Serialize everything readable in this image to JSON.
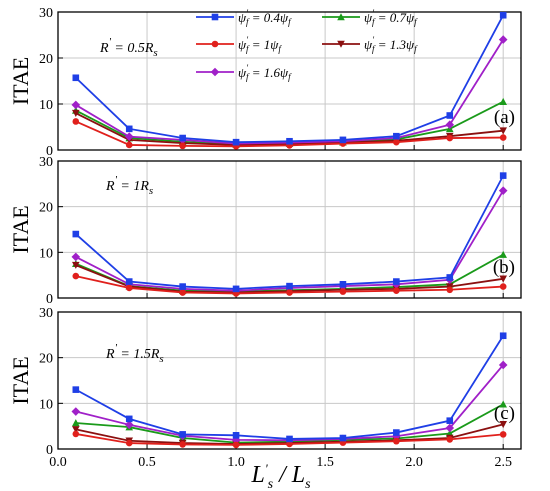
{
  "chart_data": {
    "type": "line",
    "x": [
      0.1,
      0.4,
      0.7,
      1.0,
      1.3,
      1.6,
      1.9,
      2.2,
      2.5
    ],
    "xlim": [
      0,
      2.6
    ],
    "xticks": [
      "0.0",
      "0.5",
      "1.0",
      "1.5",
      "2.0",
      "2.5"
    ],
    "xlabel": "L's/Ls",
    "grid": true,
    "legend_position": "top-center (panel a)",
    "legend": [
      {
        "label": "ψ'f = 0.4ψf",
        "color": "#1f3fe6",
        "marker": "square"
      },
      {
        "label": "ψ'f = 1ψf",
        "color": "#e0201c",
        "marker": "circle"
      },
      {
        "label": "ψ'f = 1.6ψf",
        "color": "#a020c8",
        "marker": "diamond"
      },
      {
        "label": "ψ'f = 0.7ψf",
        "color": "#1a9a1a",
        "marker": "triangle-up"
      },
      {
        "label": "ψ'f = 1.3ψf",
        "color": "#8b1010",
        "marker": "triangle-down"
      }
    ],
    "panels": [
      {
        "id": "a",
        "panel_label": "(a)",
        "rs_label": "R's = 0.5Rs",
        "ylabel": "ITAE",
        "ylim": [
          0,
          30
        ],
        "yticks": [
          "0",
          "10",
          "20",
          "30"
        ],
        "series": [
          {
            "name": "ψ'f = 0.4ψf",
            "color": "#1f3fe6",
            "marker": "square",
            "values": [
              15.7,
              4.6,
              2.6,
              1.7,
              1.9,
              2.2,
              3.0,
              7.5,
              29.3
            ]
          },
          {
            "name": "ψ'f = 1ψf",
            "color": "#e0201c",
            "marker": "circle",
            "values": [
              6.2,
              1.1,
              0.9,
              0.8,
              1.0,
              1.4,
              1.7,
              2.6,
              2.7
            ]
          },
          {
            "name": "ψ'f = 1.6ψf",
            "color": "#a020c8",
            "marker": "diamond",
            "values": [
              9.8,
              2.9,
              2.2,
              1.4,
              1.6,
              1.9,
              2.6,
              5.5,
              24.0
            ]
          },
          {
            "name": "ψ'f = 0.7ψf",
            "color": "#1a9a1a",
            "marker": "triangle-up",
            "values": [
              8.6,
              2.6,
              1.8,
              1.2,
              1.4,
              1.7,
              2.3,
              4.6,
              10.5
            ]
          },
          {
            "name": "ψ'f = 1.3ψf",
            "color": "#8b1010",
            "marker": "triangle-down",
            "values": [
              8.0,
              2.2,
              1.5,
              1.1,
              1.3,
              1.6,
              2.0,
              3.0,
              4.2
            ]
          }
        ]
      },
      {
        "id": "b",
        "panel_label": "(b)",
        "rs_label": "R's = 1Rs",
        "ylabel": "ITAE",
        "ylim": [
          0,
          30
        ],
        "yticks": [
          "0",
          "10",
          "20",
          "30"
        ],
        "series": [
          {
            "name": "ψ'f = 0.4ψf",
            "color": "#1f3fe6",
            "marker": "square",
            "values": [
              14.0,
              3.6,
              2.5,
              2.0,
              2.6,
              3.0,
              3.6,
              4.5,
              26.8
            ]
          },
          {
            "name": "ψ'f = 1ψf",
            "color": "#e0201c",
            "marker": "circle",
            "values": [
              4.8,
              2.2,
              1.2,
              1.0,
              1.2,
              1.4,
              1.6,
              1.8,
              2.5
            ]
          },
          {
            "name": "ψ'f = 1.6ψf",
            "color": "#a020c8",
            "marker": "diamond",
            "values": [
              9.0,
              3.0,
              2.0,
              1.6,
              2.2,
              2.6,
              3.0,
              4.0,
              23.5
            ]
          },
          {
            "name": "ψ'f = 0.7ψf",
            "color": "#1a9a1a",
            "marker": "triangle-up",
            "values": [
              7.5,
              2.6,
              1.6,
              1.4,
              1.7,
              2.0,
              2.4,
              3.0,
              9.5
            ]
          },
          {
            "name": "ψ'f = 1.3ψf",
            "color": "#8b1010",
            "marker": "triangle-down",
            "values": [
              7.2,
              2.5,
              1.4,
              1.2,
              1.5,
              1.8,
              2.0,
              2.5,
              4.2
            ]
          }
        ]
      },
      {
        "id": "c",
        "panel_label": "(c)",
        "rs_label": "R's = 1.5Rs",
        "ylabel": "ITAE",
        "ylim": [
          0,
          30
        ],
        "yticks": [
          "0",
          "10",
          "20",
          "30"
        ],
        "series": [
          {
            "name": "ψ'f = 0.4ψf",
            "color": "#1f3fe6",
            "marker": "square",
            "values": [
              13.0,
              6.6,
              3.2,
              3.0,
              2.2,
              2.4,
              3.6,
              6.2,
              24.8
            ]
          },
          {
            "name": "ψ'f = 1ψf",
            "color": "#e0201c",
            "marker": "circle",
            "values": [
              3.3,
              1.3,
              1.0,
              0.9,
              1.1,
              1.4,
              1.7,
              2.1,
              3.2
            ]
          },
          {
            "name": "ψ'f = 1.6ψf",
            "color": "#a020c8",
            "marker": "diamond",
            "values": [
              8.2,
              5.3,
              2.9,
              2.0,
              1.9,
              2.2,
              2.8,
              4.6,
              18.4
            ]
          },
          {
            "name": "ψ'f = 0.7ψf",
            "color": "#1a9a1a",
            "marker": "triangle-up",
            "values": [
              5.7,
              4.8,
              2.4,
              1.4,
              1.6,
              2.0,
              2.3,
              3.4,
              9.8
            ]
          },
          {
            "name": "ψ'f = 1.3ψf",
            "color": "#8b1010",
            "marker": "triangle-down",
            "values": [
              4.3,
              1.8,
              1.3,
              1.1,
              1.3,
              1.6,
              1.9,
              2.4,
              5.4
            ]
          }
        ]
      }
    ]
  }
}
